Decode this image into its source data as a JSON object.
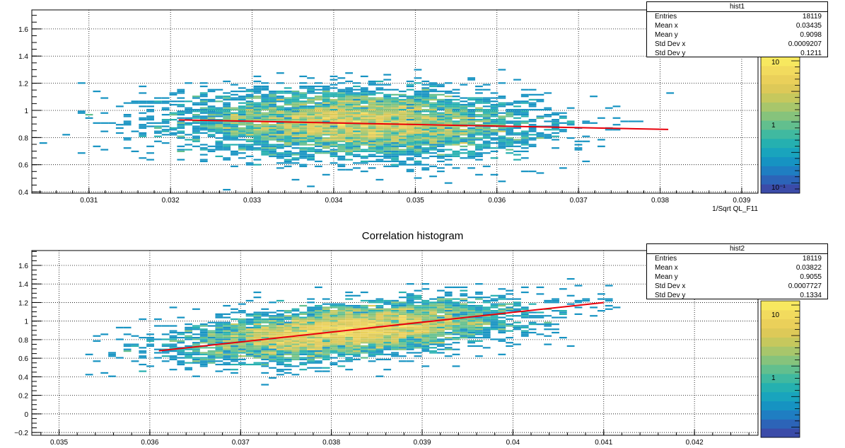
{
  "chart_data": [
    {
      "type": "heatmap",
      "title": "",
      "xlabel": "1/Sqrt QL_F11",
      "ylabel": "",
      "xlim": [
        0.0303,
        0.0392
      ],
      "ylim": [
        0.39,
        1.74
      ],
      "x_ticks": [
        "0.031",
        "0.032",
        "0.033",
        "0.034",
        "0.035",
        "0.036",
        "0.037",
        "0.038",
        "0.039"
      ],
      "x_tick_values": [
        0.031,
        0.032,
        0.033,
        0.034,
        0.035,
        0.036,
        0.037,
        0.038,
        0.039
      ],
      "y_ticks": [
        "0.4",
        "0.6",
        "0.8",
        "1",
        "1.2",
        "1.4",
        "1.6"
      ],
      "y_tick_values": [
        0.4,
        0.6,
        0.8,
        1.0,
        1.2,
        1.4,
        1.6
      ],
      "grid": true,
      "colorbar": {
        "scale": "log",
        "labels": [
          "10",
          "1",
          "10⁻¹"
        ],
        "label_values": [
          10,
          1,
          0.1
        ]
      },
      "density_center": [
        0.0343,
        0.91
      ],
      "density_spread": [
        0.0009207,
        0.1211
      ],
      "fit_line": {
        "x": [
          0.0321,
          0.0381
        ],
        "y": [
          0.93,
          0.86
        ],
        "color": "#e8000b"
      },
      "stats": {
        "name": "hist1",
        "rows": [
          {
            "label": "Entries",
            "value": "18119"
          },
          {
            "label": "Mean x",
            "value": "0.03435"
          },
          {
            "label": "Mean y",
            "value": "0.9098"
          },
          {
            "label": "Std Dev x",
            "value": "0.0009207"
          },
          {
            "label": "Std Dev y",
            "value": "0.1211"
          }
        ]
      }
    },
    {
      "type": "heatmap",
      "title": "Correlation histogram",
      "xlabel": "",
      "ylabel": "",
      "xlim": [
        0.0347,
        0.0427
      ],
      "ylim": [
        -0.23,
        1.76
      ],
      "x_ticks": [
        "0.035",
        "0.036",
        "0.037",
        "0.038",
        "0.039",
        "0.04",
        "0.041",
        "0.042"
      ],
      "x_tick_values": [
        0.035,
        0.036,
        0.037,
        0.038,
        0.039,
        0.04,
        0.041,
        0.042
      ],
      "y_ticks": [
        "−0.2",
        "0",
        "0.2",
        "0.4",
        "0.6",
        "0.8",
        "1",
        "1.2",
        "1.4",
        "1.6"
      ],
      "y_tick_values": [
        -0.2,
        0.0,
        0.2,
        0.4,
        0.6,
        0.8,
        1.0,
        1.2,
        1.4,
        1.6
      ],
      "grid": true,
      "colorbar": {
        "scale": "log",
        "labels": [
          "10",
          "1"
        ],
        "label_values": [
          10,
          1
        ]
      },
      "density_center": [
        0.0382,
        0.905
      ],
      "density_spread": [
        0.0007727,
        0.1334
      ],
      "fit_line": {
        "x": [
          0.0361,
          0.041
        ],
        "y": [
          0.68,
          1.2
        ],
        "color": "#e8000b"
      },
      "stats": {
        "name": "hist2",
        "rows": [
          {
            "label": "Entries",
            "value": "18119"
          },
          {
            "label": "Mean x",
            "value": "0.03822"
          },
          {
            "label": "Mean y",
            "value": "0.9055"
          },
          {
            "label": "Std Dev x",
            "value": "0.0007727"
          },
          {
            "label": "Std Dev y",
            "value": "0.1334"
          }
        ]
      }
    }
  ]
}
